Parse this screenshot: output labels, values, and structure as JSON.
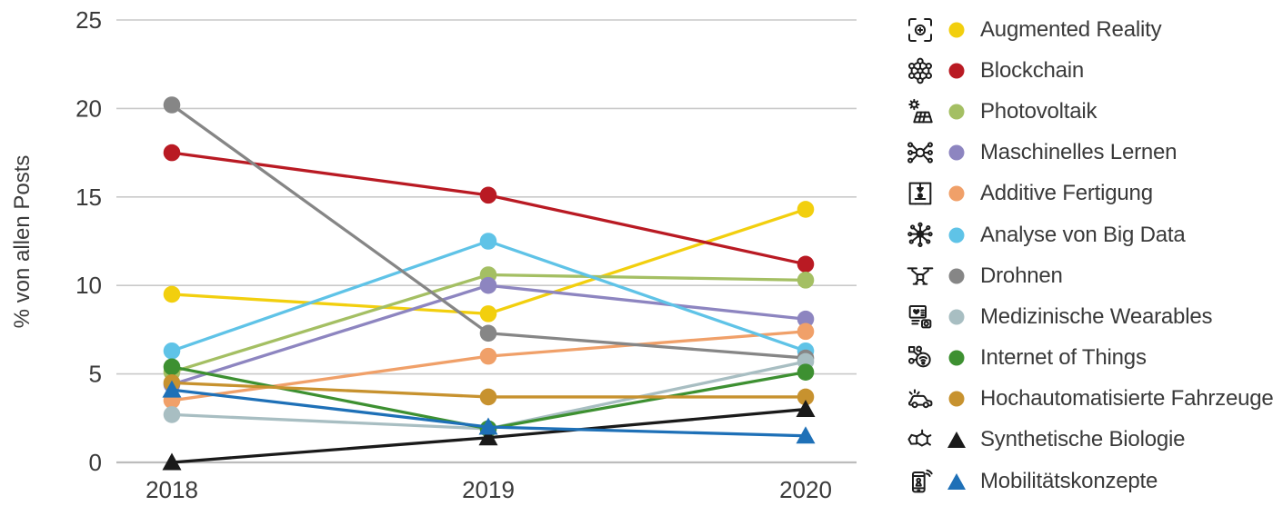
{
  "chart_data": {
    "type": "line",
    "title": "",
    "xlabel": "",
    "ylabel": "% von allen Posts",
    "x_categories": [
      "2018",
      "2019",
      "2020"
    ],
    "yticks": [
      0,
      5,
      10,
      15,
      20,
      25
    ],
    "ylim": [
      0,
      25
    ],
    "grid": true,
    "legend_position": "right",
    "series": [
      {
        "name": "Augmented Reality",
        "color": "#f2cf0e",
        "marker": "circle",
        "icon": "augmented-reality-icon",
        "values": [
          9.5,
          8.4,
          14.3
        ]
      },
      {
        "name": "Blockchain",
        "color": "#b91a23",
        "marker": "circle",
        "icon": "blockchain-icon",
        "values": [
          17.5,
          15.1,
          11.2
        ]
      },
      {
        "name": "Photovoltaik",
        "color": "#a4bf63",
        "marker": "circle",
        "icon": "photovoltaics-icon",
        "values": [
          5.1,
          10.6,
          10.3
        ]
      },
      {
        "name": "Maschinelles Lernen",
        "color": "#8d85c0",
        "marker": "circle",
        "icon": "machine-learning-icon",
        "values": [
          4.4,
          10.0,
          8.1
        ]
      },
      {
        "name": "Additive Fertigung",
        "color": "#f0a069",
        "marker": "circle",
        "icon": "additive-manufacturing-icon",
        "values": [
          3.5,
          6.0,
          7.4
        ]
      },
      {
        "name": "Analyse von Big Data",
        "color": "#5fc3e7",
        "marker": "circle",
        "icon": "big-data-icon",
        "values": [
          6.3,
          12.5,
          6.3
        ]
      },
      {
        "name": "Drohnen",
        "color": "#868686",
        "marker": "circle",
        "icon": "drone-icon",
        "values": [
          20.2,
          7.3,
          5.9
        ]
      },
      {
        "name": "Medizinische Wearables",
        "color": "#a8bec2",
        "marker": "circle",
        "icon": "medical-wearables-icon",
        "values": [
          2.7,
          1.9,
          5.7
        ]
      },
      {
        "name": "Internet of Things",
        "color": "#3d9031",
        "marker": "circle",
        "icon": "internet-of-things-icon",
        "values": [
          5.4,
          1.9,
          5.1
        ]
      },
      {
        "name": "Hochautomatisierte Fahrzeuge",
        "color": "#c7922f",
        "marker": "circle",
        "icon": "automated-vehicles-icon",
        "values": [
          4.5,
          3.7,
          3.7
        ]
      },
      {
        "name": "Synthetische Biologie",
        "color": "#1a1a1a",
        "marker": "triangle",
        "icon": "synthetic-biology-icon",
        "values": [
          0.0,
          1.4,
          3.0
        ]
      },
      {
        "name": "Mobilitätskonzepte",
        "color": "#1e70b7",
        "marker": "triangle",
        "icon": "mobility-concepts-icon",
        "values": [
          4.1,
          2.0,
          1.5
        ]
      }
    ]
  }
}
